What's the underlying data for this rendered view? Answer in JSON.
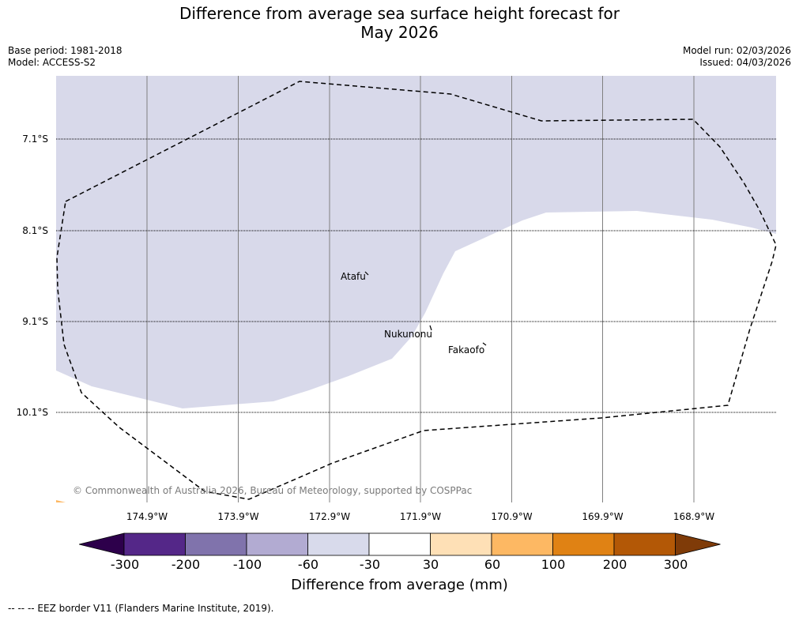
{
  "header": {
    "title_line1": "Difference from average sea surface height forecast for",
    "title_line2": "May 2026",
    "base_period": "Base period: 1981-2018",
    "model": "Model: ACCESS-S2",
    "model_run": "Model run: 02/03/2026",
    "issued": "Issued: 04/03/2026"
  },
  "map": {
    "latitudes": [
      "7.1°S",
      "8.1°S",
      "9.1°S",
      "10.1°S"
    ],
    "longitudes": [
      "174.9°W",
      "173.9°W",
      "172.9°W",
      "171.9°W",
      "170.9°W",
      "169.9°W",
      "168.9°W"
    ],
    "places": {
      "atafu": "Atafu",
      "nukunonu": "Nukunonu",
      "fakaofo": "Fakaofo"
    },
    "copyright": "© Commonwealth of Australia 2026, Bureau of Meteorology, supported by COSPPac",
    "fill_color": "#d8d9ea",
    "region_fill_class": "-60 to -30 mm"
  },
  "colorbar": {
    "ticks": [
      "-300",
      "-200",
      "-100",
      "-60",
      "-30",
      "30",
      "60",
      "100",
      "200",
      "300"
    ],
    "colors": [
      "#2d004b",
      "#542788",
      "#8073ac",
      "#b2abd2",
      "#d8daeb",
      "#ffffff",
      "#fee0b6",
      "#fdb863",
      "#e08214",
      "#b35806",
      "#7f3b08"
    ],
    "label": "Difference from average (mm)"
  },
  "footer": {
    "legend": "--  --  -- EEZ border V11 (Flanders Marine Institute, 2019)."
  }
}
